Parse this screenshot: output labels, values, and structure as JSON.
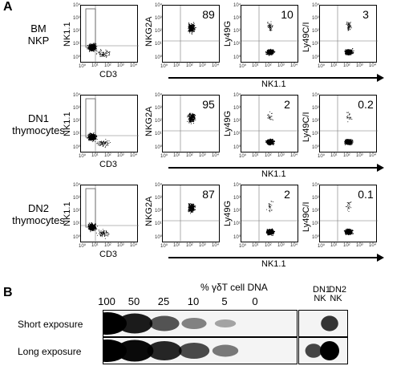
{
  "panel_a": {
    "letter": "A",
    "rows": [
      {
        "label_lines": [
          "BM",
          "NKP"
        ],
        "first_x_label": "CD3",
        "first_y_label": "NK1.1",
        "y_labels": [
          "NKG2A",
          "Ly49G",
          "Ly49C/I"
        ],
        "percents": [
          "89",
          "10",
          "3"
        ],
        "shared_x_label": "NK1.1"
      },
      {
        "label_lines": [
          "DN1",
          "thymocytes"
        ],
        "first_x_label": "CD3",
        "first_y_label": "NK1.1",
        "y_labels": [
          "NKG2A",
          "Ly49G",
          "Ly49C/I"
        ],
        "percents": [
          "95",
          "2",
          "0.2"
        ],
        "shared_x_label": "NK1.1"
      },
      {
        "label_lines": [
          "DN2",
          "thymocytes"
        ],
        "first_x_label": "CD3",
        "first_y_label": "NK1.1",
        "y_labels": [
          "NKG2A",
          "Ly49G",
          "Ly49C/I"
        ],
        "percents": [
          "87",
          "2",
          "0.1"
        ],
        "shared_x_label": "NK1.1"
      }
    ]
  },
  "panel_b": {
    "letter": "B",
    "title": "% γδT cell DNA",
    "lanes": [
      "100",
      "50",
      "25",
      "10",
      "5",
      "0"
    ],
    "controls": [
      [
        "DN1",
        "NK"
      ],
      [
        "DN2",
        "NK"
      ]
    ],
    "exposures": [
      "Short exposure",
      "Long exposure"
    ]
  }
}
